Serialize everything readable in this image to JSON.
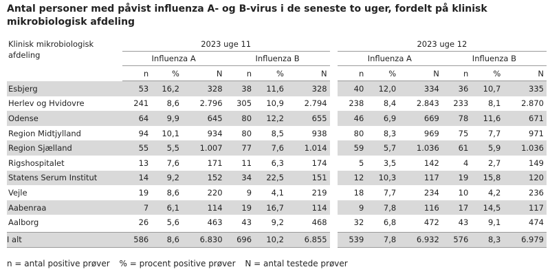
{
  "title": "Antal personer med påvist influenza A- og B-virus i de seneste to uger, fordelt på klinisk mikrobiologisk afdeling",
  "header": {
    "row_label": "Klinisk mikrobiologisk afdeling",
    "weeks": [
      "2023 uge 11",
      "2023 uge 12"
    ],
    "groups": [
      "Influenza A",
      "Influenza B",
      "Influenza A",
      "Influenza B"
    ],
    "subcols": [
      "n",
      "%",
      "N"
    ]
  },
  "rows": [
    {
      "name": "Esbjerg",
      "values": [
        "53",
        "16,2",
        "328",
        "38",
        "11,6",
        "328",
        "40",
        "12,0",
        "334",
        "36",
        "10,7",
        "335"
      ]
    },
    {
      "name": "Herlev og Hvidovre",
      "values": [
        "241",
        "8,6",
        "2.796",
        "305",
        "10,9",
        "2.794",
        "238",
        "8,4",
        "2.843",
        "233",
        "8,1",
        "2.870"
      ]
    },
    {
      "name": "Odense",
      "values": [
        "64",
        "9,9",
        "645",
        "80",
        "12,2",
        "655",
        "46",
        "6,9",
        "669",
        "78",
        "11,6",
        "671"
      ]
    },
    {
      "name": "Region Midtjylland",
      "values": [
        "94",
        "10,1",
        "934",
        "80",
        "8,5",
        "938",
        "80",
        "8,3",
        "969",
        "75",
        "7,7",
        "971"
      ]
    },
    {
      "name": "Region Sjælland",
      "values": [
        "55",
        "5,5",
        "1.007",
        "77",
        "7,6",
        "1.014",
        "59",
        "5,7",
        "1.036",
        "61",
        "5,9",
        "1.036"
      ]
    },
    {
      "name": "Rigshospitalet",
      "values": [
        "13",
        "7,6",
        "171",
        "11",
        "6,3",
        "174",
        "5",
        "3,5",
        "142",
        "4",
        "2,7",
        "149"
      ]
    },
    {
      "name": "Statens Serum Institut",
      "values": [
        "14",
        "9,2",
        "152",
        "34",
        "22,5",
        "151",
        "12",
        "10,3",
        "117",
        "19",
        "15,8",
        "120"
      ]
    },
    {
      "name": "Vejle",
      "values": [
        "19",
        "8,6",
        "220",
        "9",
        "4,1",
        "219",
        "18",
        "7,7",
        "234",
        "10",
        "4,2",
        "236"
      ]
    },
    {
      "name": "Aabenraa",
      "values": [
        "7",
        "6,1",
        "114",
        "19",
        "16,7",
        "114",
        "9",
        "7,8",
        "116",
        "17",
        "14,5",
        "117"
      ]
    },
    {
      "name": "Aalborg",
      "values": [
        "26",
        "5,6",
        "463",
        "43",
        "9,2",
        "468",
        "32",
        "6,8",
        "472",
        "43",
        "9,1",
        "474"
      ]
    }
  ],
  "total": {
    "name": "I alt",
    "values": [
      "586",
      "8,6",
      "6.830",
      "696",
      "10,2",
      "6.855",
      "539",
      "7,8",
      "6.932",
      "576",
      "8,3",
      "6.979"
    ]
  },
  "footnote": [
    "n = antal positive prøver",
    "% = procent positive prøver",
    "N = antal testede prøver"
  ]
}
